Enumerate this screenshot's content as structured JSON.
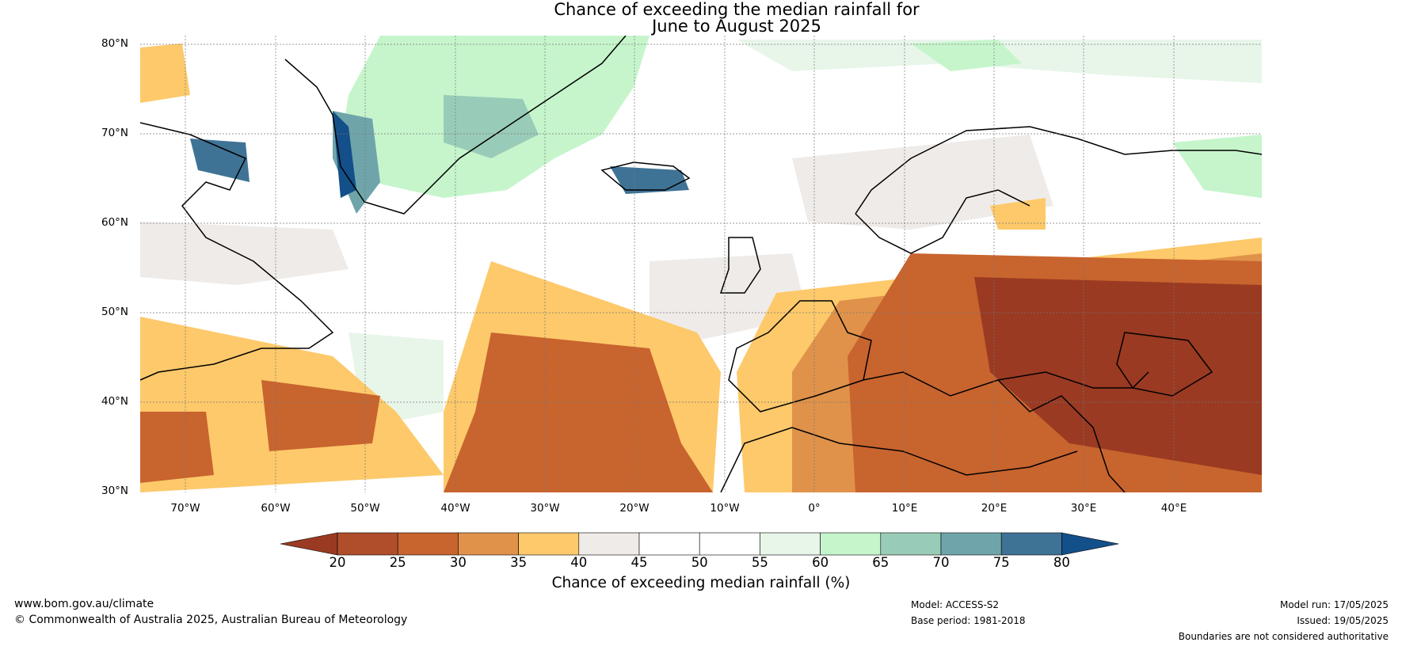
{
  "title_line1": "Chance of exceeding the median rainfall for",
  "title_line2": "June to August 2025",
  "lat_labels": [
    "80°N",
    "70°N",
    "60°N",
    "50°N",
    "40°N",
    "30°N"
  ],
  "lon_labels": [
    "70°W",
    "60°W",
    "50°W",
    "40°W",
    "30°W",
    "20°W",
    "10°W",
    "0°",
    "10°E",
    "20°E",
    "30°E",
    "40°E"
  ],
  "colorbar": {
    "ticks": [
      "20",
      "25",
      "30",
      "35",
      "40",
      "45",
      "50",
      "55",
      "60",
      "65",
      "70",
      "75",
      "80"
    ],
    "colors": [
      "#9a3a22",
      "#b04e2c",
      "#c8642e",
      "#e0924a",
      "#fdc96b",
      "#efebe8",
      "#ffffff",
      "#ffffff",
      "#e8f6ea",
      "#c6f5cc",
      "#99ccb8",
      "#6fa5aa",
      "#3f7396",
      "#134f88"
    ],
    "label": "Chance of exceeding median rainfall (%)"
  },
  "footer": {
    "website": "www.bom.gov.au/climate",
    "copyright": "© Commonwealth of Australia 2025, Australian Bureau of Meteorology",
    "model": "Model: ACCESS-S2",
    "base_period": "Base period: 1981-2018",
    "model_run": "Model run: 17/05/2025",
    "issued": "Issued: 19/05/2025",
    "disclaimer": "Boundaries are not considered authoritative"
  },
  "colors": {
    "dry_strong": "#9a3a22",
    "dry": "#c8642e",
    "dry_light": "#fdc96b",
    "neutral": "#efebe8",
    "wet_light": "#c6f5cc",
    "wet": "#99ccb8",
    "wet_strong": "#134f88"
  }
}
